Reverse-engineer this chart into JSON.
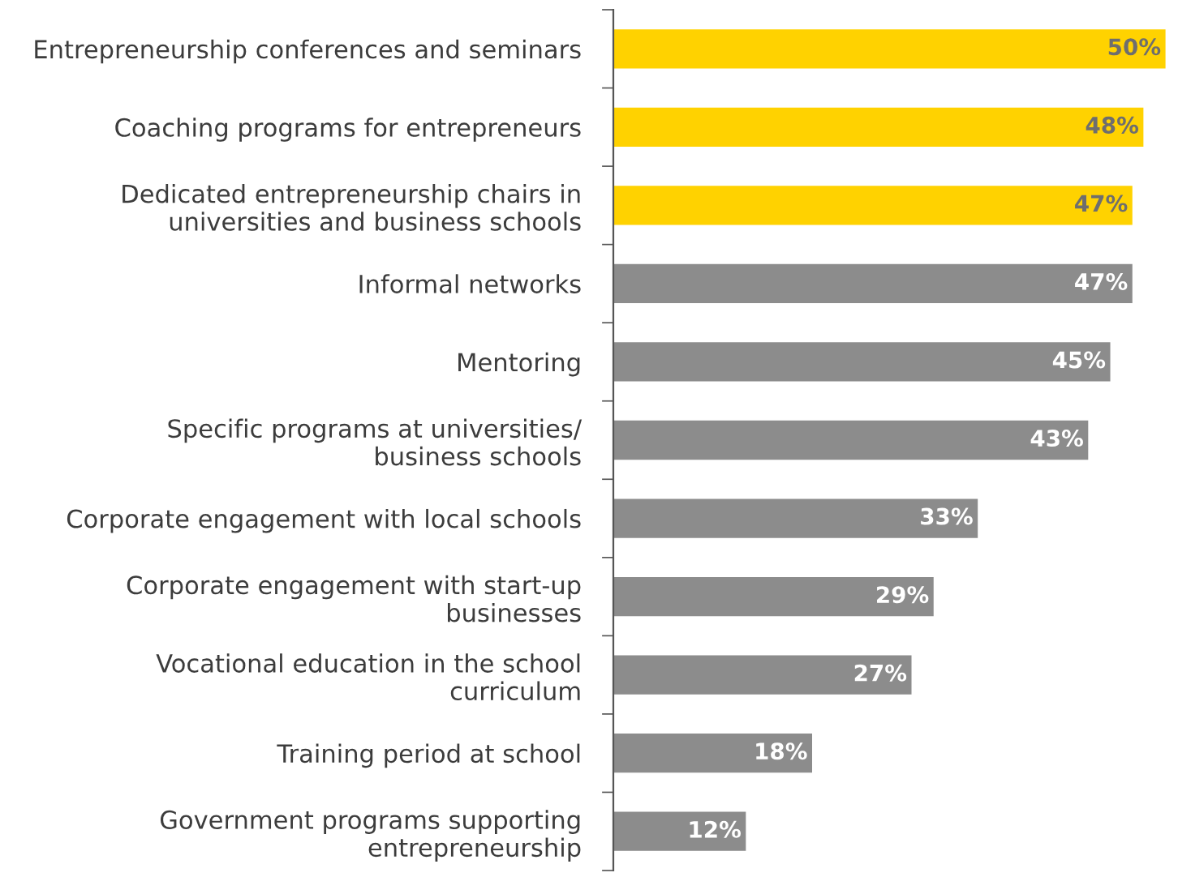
{
  "chart_data": {
    "type": "bar",
    "orientation": "horizontal",
    "categories": [
      "Entrepreneurship conferences and seminars",
      "Coaching programs for entrepreneurs",
      "Dedicated entrepreneurship chairs in\nuniversities and business schools",
      "Informal networks",
      "Mentoring",
      "Specific programs at universities/\nbusiness schools",
      "Corporate engagement with local schools",
      "Corporate engagement with start-up\nbusinesses",
      "Vocational education in the school\ncurriculum",
      "Training period at school",
      "Government programs supporting\nentrepreneurship"
    ],
    "values": [
      50,
      48,
      47,
      47,
      45,
      43,
      33,
      29,
      27,
      18,
      12
    ],
    "value_labels": [
      "50%",
      "48%",
      "47%",
      "47%",
      "45%",
      "43%",
      "33%",
      "29%",
      "27%",
      "18%",
      "12%"
    ],
    "colors": [
      "#ffd200",
      "#ffd200",
      "#ffd200",
      "#8c8c8c",
      "#8c8c8c",
      "#8c8c8c",
      "#8c8c8c",
      "#8c8c8c",
      "#8c8c8c",
      "#8c8c8c",
      "#8c8c8c"
    ],
    "grid": false,
    "legend": false
  }
}
